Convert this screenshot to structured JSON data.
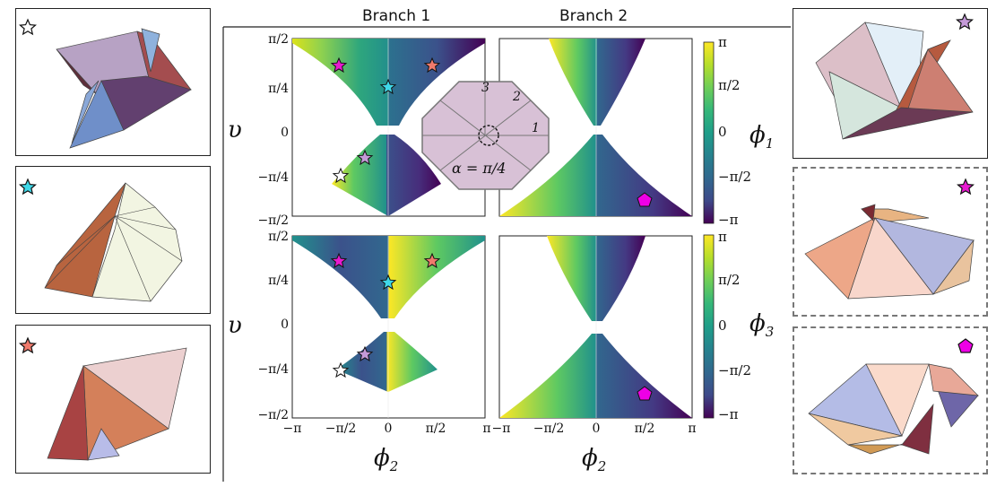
{
  "branch_titles": [
    "Branch 1",
    "Branch 2"
  ],
  "y_axis_label": "υ",
  "x_axis_label": "ϕ",
  "x_axis_subscript": "2",
  "row_labels": [
    {
      "sym": "ϕ",
      "sub": "1"
    },
    {
      "sym": "ϕ",
      "sub": "3"
    }
  ],
  "y_ticks": [
    "π/2",
    "π/4",
    "0",
    "−π/4",
    "−π/2"
  ],
  "x_ticks": [
    "−π",
    "−π/2",
    "0",
    "π/2",
    "π"
  ],
  "colorbar_ticks": [
    "π",
    "π/2",
    "0",
    "−π/2",
    "−π"
  ],
  "inset": {
    "angle_label": "α = π/4",
    "crease_numbers": [
      "3",
      "2",
      "1"
    ]
  },
  "colors": {
    "star_white": "#ffffff",
    "star_cyan": "#3fd8e8",
    "star_salmon": "#f07a6c",
    "star_magenta": "#e81ad0",
    "star_lavender": "#c49ad8",
    "pentagon_magenta": "#ee00e6"
  },
  "marker_icons": [
    "white-star-icon",
    "cyan-star-icon",
    "salmon-star-icon",
    "lavender-star-icon",
    "magenta-star-icon",
    "magenta-pentagon-icon"
  ]
}
